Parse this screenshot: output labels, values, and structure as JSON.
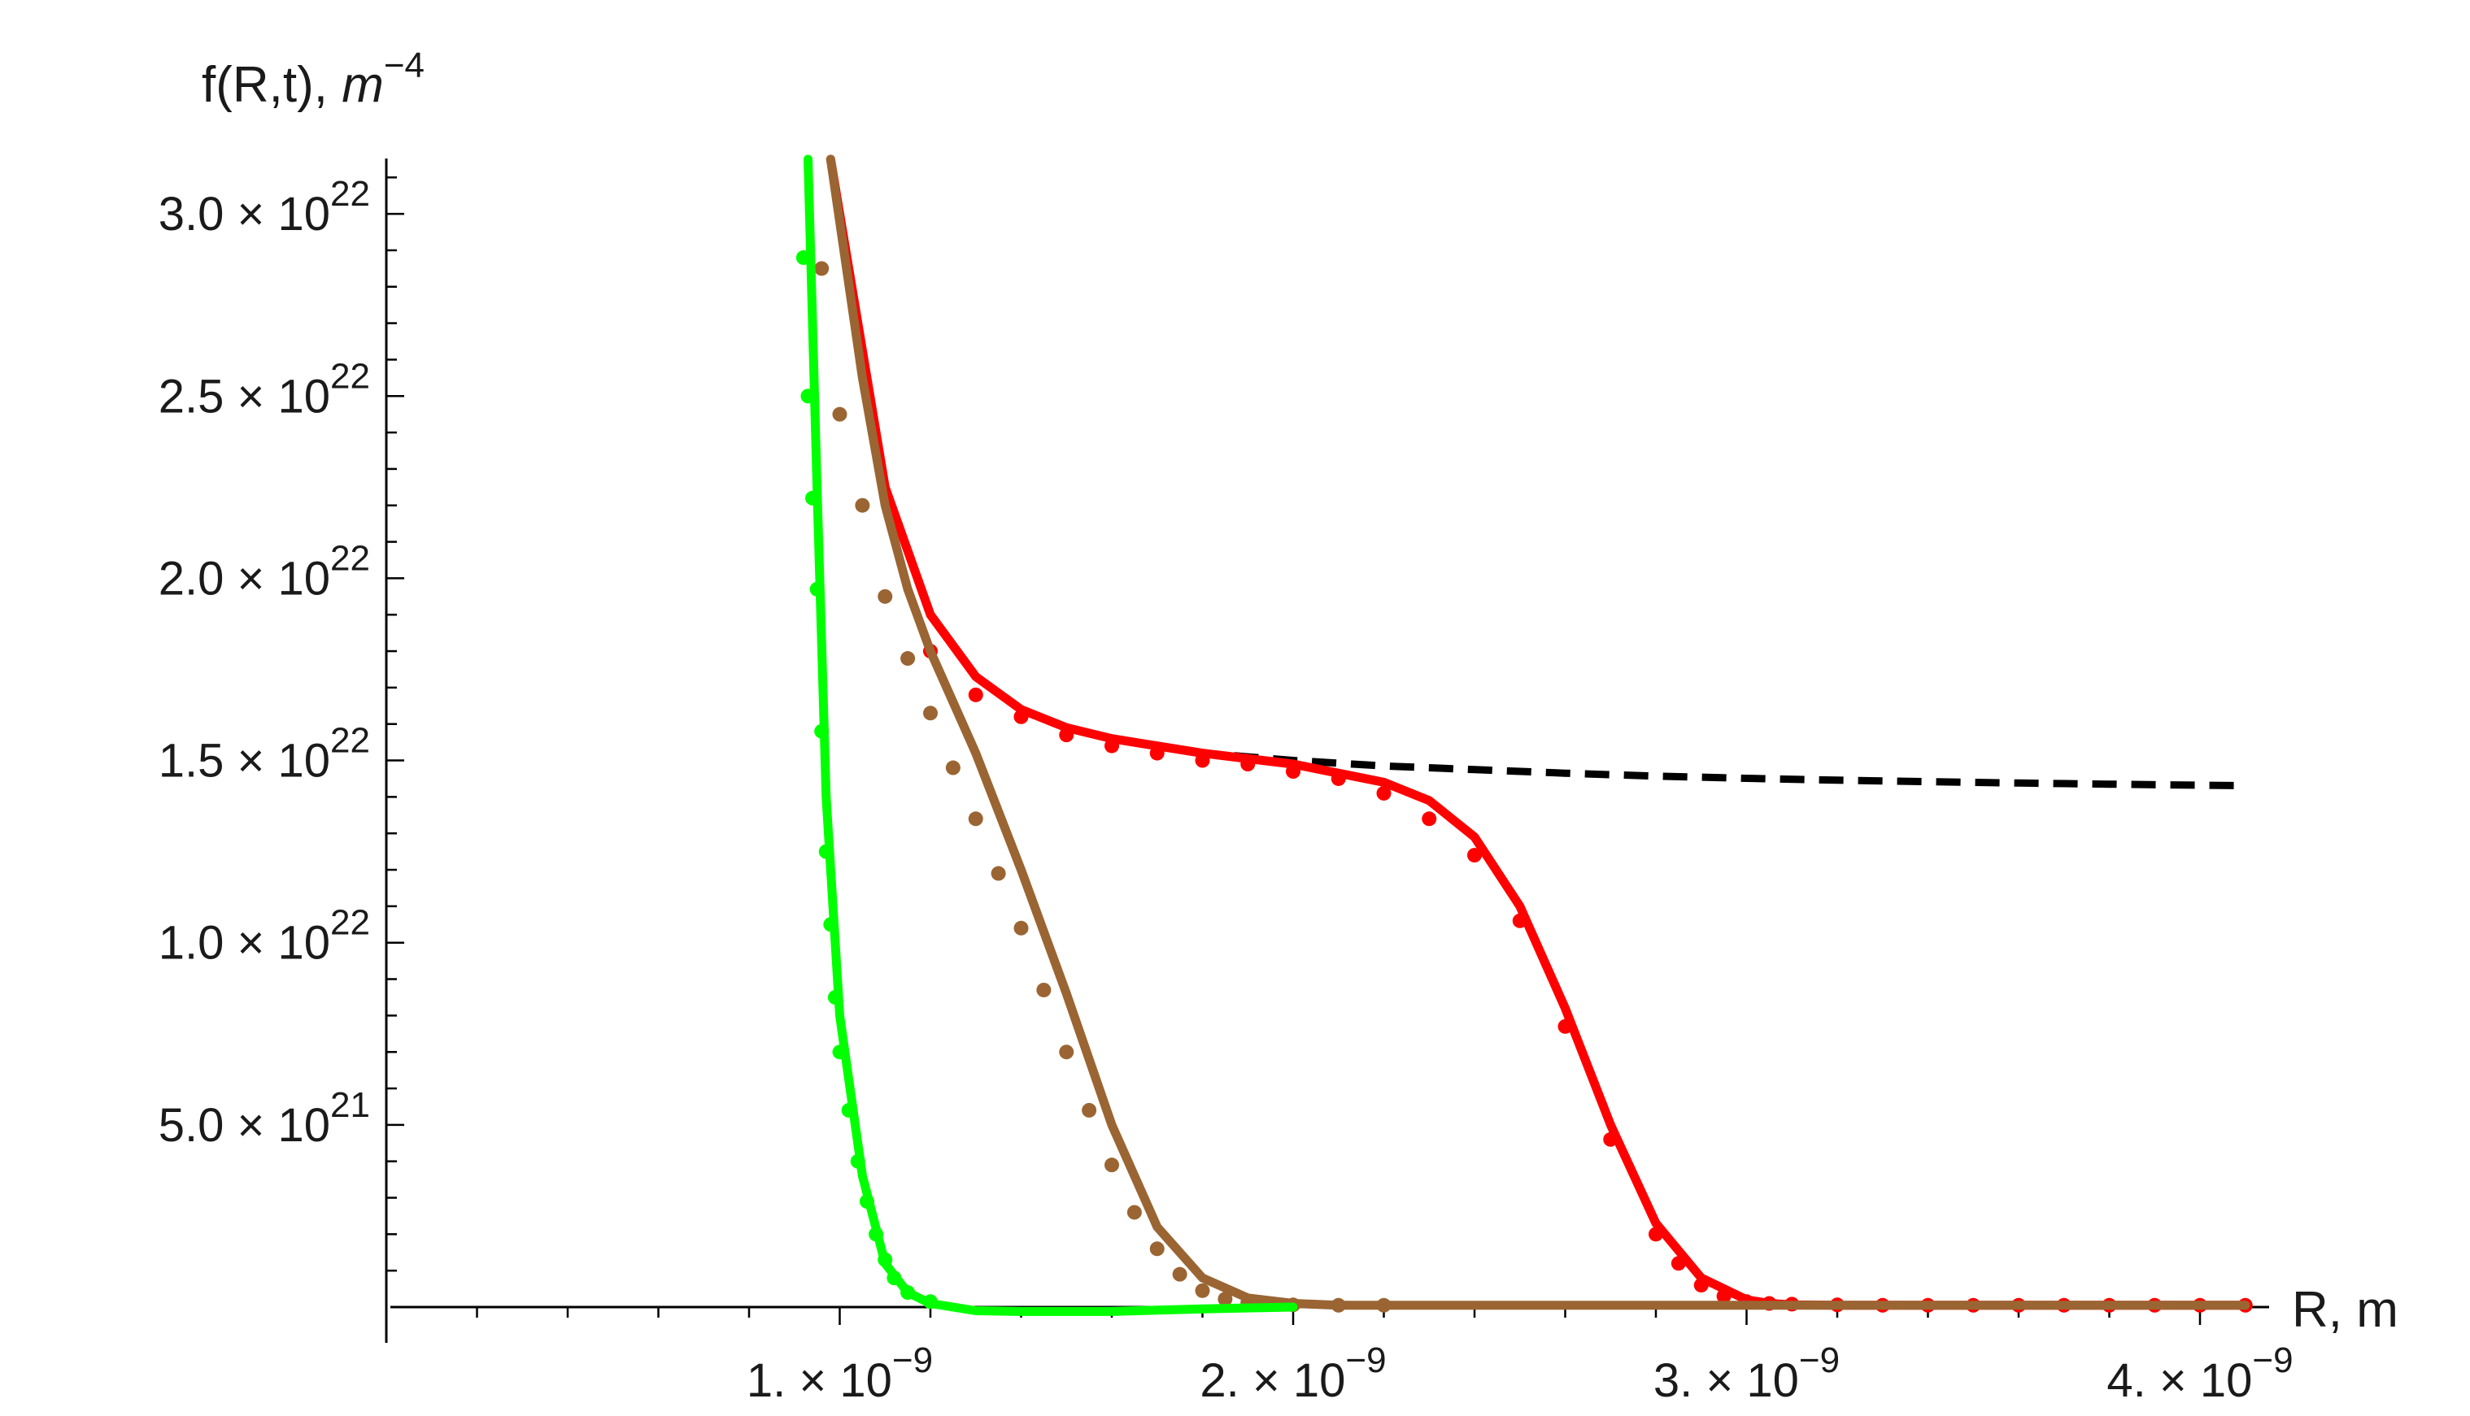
{
  "chart_data": {
    "type": "line",
    "xlabel": "R, m",
    "ylabel_main": "f(R,t), ",
    "ylabel_unit": "m",
    "ylabel_exp": "−4",
    "xlim": [
      0,
      4.1e-09
    ],
    "ylim": [
      -2e+20,
      3.15e+22
    ],
    "x_ticks": [
      {
        "value": 1e-09,
        "mant": "1.",
        "exp": "−9"
      },
      {
        "value": 2e-09,
        "mant": "2.",
        "exp": "−9"
      },
      {
        "value": 3e-09,
        "mant": "3.",
        "exp": "−9"
      },
      {
        "value": 4e-09,
        "mant": "4.",
        "exp": "−9"
      }
    ],
    "y_ticks": [
      {
        "value": 5e+21,
        "mant": "5.0",
        "exp": "21"
      },
      {
        "value": 1e+22,
        "mant": "1.0",
        "exp": "22"
      },
      {
        "value": 1.5e+22,
        "mant": "1.5",
        "exp": "22"
      },
      {
        "value": 2e+22,
        "mant": "2.0",
        "exp": "22"
      },
      {
        "value": 2.5e+22,
        "mant": "2.5",
        "exp": "22"
      },
      {
        "value": 3e+22,
        "mant": "3.0",
        "exp": "22"
      }
    ],
    "series": [
      {
        "style": "dashed",
        "color": "#000000",
        "x": [
          9.8e-10,
          1.1e-09,
          1.2e-09,
          1.3e-09,
          1.4e-09,
          1.5e-09,
          1.6e-09,
          1.8e-09,
          2e-09,
          2.2e-09,
          2.4e-09,
          2.6e-09,
          2.8e-09,
          3e-09,
          3.2e-09,
          3.4e-09,
          3.6e-09,
          3.8e-09,
          4e-09,
          4.1e-09
        ],
        "y": [
          3.15e+22,
          2.25e+22,
          1.9e+22,
          1.73e+22,
          1.64e+22,
          1.59e+22,
          1.56e+22,
          1.52e+22,
          1.5e+22,
          1.485e+22,
          1.475e+22,
          1.465e+22,
          1.457e+22,
          1.451e+22,
          1.446e+22,
          1.442e+22,
          1.438e+22,
          1.435e+22,
          1.432e+22,
          1.431e+22
        ]
      },
      {
        "style": "solid",
        "color": "#ff0000",
        "x": [
          9.8e-10,
          1.1e-09,
          1.2e-09,
          1.3e-09,
          1.4e-09,
          1.5e-09,
          1.6e-09,
          1.8e-09,
          2e-09,
          2.2e-09,
          2.3e-09,
          2.4e-09,
          2.5e-09,
          2.6e-09,
          2.7e-09,
          2.8e-09,
          2.9e-09,
          3e-09,
          3.05e-09,
          3.1e-09,
          3.2e-09,
          3.4e-09,
          3.7e-09,
          4.1e-09
        ],
        "y": [
          3.15e+22,
          2.25e+22,
          1.9e+22,
          1.73e+22,
          1.64e+22,
          1.59e+22,
          1.56e+22,
          1.52e+22,
          1.49e+22,
          1.44e+22,
          1.39e+22,
          1.29e+22,
          1.1e+22,
          8.2e+21,
          5e+21,
          2.3e+21,
          8e+20,
          2e+20,
          1e+20,
          6e+19,
          5e+19,
          5e+19,
          5e+19,
          5e+19
        ]
      },
      {
        "style": "dots",
        "color": "#ff0000",
        "x": [
          1.2e-09,
          1.3e-09,
          1.4e-09,
          1.5e-09,
          1.6e-09,
          1.7e-09,
          1.8e-09,
          1.9e-09,
          2e-09,
          2.1e-09,
          2.2e-09,
          2.3e-09,
          2.4e-09,
          2.5e-09,
          2.6e-09,
          2.7e-09,
          2.8e-09,
          2.85e-09,
          2.9e-09,
          2.95e-09,
          3e-09,
          3.05e-09,
          3.1e-09,
          3.2e-09,
          3.3e-09,
          3.4e-09,
          3.5e-09,
          3.6e-09,
          3.7e-09,
          3.8e-09,
          3.9e-09,
          4e-09,
          4.1e-09
        ],
        "y": [
          1.8e+22,
          1.68e+22,
          1.62e+22,
          1.57e+22,
          1.54e+22,
          1.52e+22,
          1.5e+22,
          1.49e+22,
          1.47e+22,
          1.45e+22,
          1.41e+22,
          1.34e+22,
          1.24e+22,
          1.06e+22,
          7.7e+21,
          4.6e+21,
          2e+21,
          1.2e+21,
          6e+20,
          3e+20,
          1.5e+20,
          1e+20,
          8e+19,
          6e+19,
          5e+19,
          5e+19,
          5e+19,
          5e+19,
          5e+19,
          5e+19,
          5e+19,
          5e+19,
          5e+19
        ]
      },
      {
        "style": "solid",
        "color": "#9a6533",
        "x": [
          9.8e-10,
          1.05e-09,
          1.1e-09,
          1.15e-09,
          1.2e-09,
          1.3e-09,
          1.4e-09,
          1.5e-09,
          1.6e-09,
          1.7e-09,
          1.8e-09,
          1.9e-09,
          2e-09,
          2.1e-09,
          2.2e-09,
          2.4e-09,
          2.8e-09,
          3.2e-09,
          3.6e-09,
          4.1e-09
        ],
        "y": [
          3.15e+22,
          2.55e+22,
          2.2e+22,
          1.97e+22,
          1.8e+22,
          1.52e+22,
          1.2e+22,
          8.6e+21,
          5e+21,
          2.2e+21,
          8e+20,
          2.5e+20,
          1e+20,
          5e+19,
          5e+19,
          5e+19,
          5e+19,
          5e+19,
          5e+19,
          5e+19
        ]
      },
      {
        "style": "dots",
        "color": "#9a6533",
        "x": [
          9.6e-10,
          1e-09,
          1.05e-09,
          1.1e-09,
          1.15e-09,
          1.2e-09,
          1.25e-09,
          1.3e-09,
          1.35e-09,
          1.4e-09,
          1.45e-09,
          1.5e-09,
          1.55e-09,
          1.6e-09,
          1.65e-09,
          1.7e-09,
          1.75e-09,
          1.8e-09,
          1.85e-09,
          1.9e-09,
          1.95e-09,
          2e-09,
          2.1e-09,
          2.2e-09
        ],
        "y": [
          2.85e+22,
          2.45e+22,
          2.2e+22,
          1.95e+22,
          1.78e+22,
          1.63e+22,
          1.48e+22,
          1.34e+22,
          1.19e+22,
          1.04e+22,
          8.7e+21,
          7e+21,
          5.4e+21,
          3.9e+21,
          2.6e+21,
          1.6e+21,
          9e+20,
          4.5e+20,
          2.2e+20,
          1.2e+20,
          8e+19,
          6e+19,
          5e+19,
          5e+19
        ]
      },
      {
        "style": "solid",
        "color": "#00ff00",
        "x": [
          9.3e-10,
          9.5e-10,
          9.7e-10,
          1e-09,
          1.05e-09,
          1.1e-09,
          1.15e-09,
          1.2e-09,
          1.25e-09,
          1.3e-09,
          1.4e-09,
          1.6e-09,
          1.8e-09,
          2e-09
        ],
        "y": [
          3.15e+22,
          2.25e+22,
          1.4e+22,
          8e+21,
          3.6e+21,
          1.2e+21,
          4e+20,
          1e+20,
          0.0,
          -1e+20,
          -1.2e+20,
          -1.2e+20,
          -5e+19,
          0.0
        ]
      },
      {
        "style": "dots",
        "color": "#00ff00",
        "x": [
          9.2e-10,
          9.3e-10,
          9.4e-10,
          9.5e-10,
          9.6e-10,
          9.7e-10,
          9.8e-10,
          9.9e-10,
          1e-09,
          1.02e-09,
          1.04e-09,
          1.06e-09,
          1.08e-09,
          1.1e-09,
          1.12e-09,
          1.15e-09,
          1.2e-09
        ],
        "y": [
          2.88e+22,
          2.5e+22,
          2.22e+22,
          1.97e+22,
          1.58e+22,
          1.25e+22,
          1.05e+22,
          8.5e+21,
          7e+21,
          5.4e+21,
          4e+21,
          2.9e+21,
          2e+21,
          1.3e+21,
          8e+20,
          4e+20,
          1.5e+20
        ]
      }
    ]
  }
}
